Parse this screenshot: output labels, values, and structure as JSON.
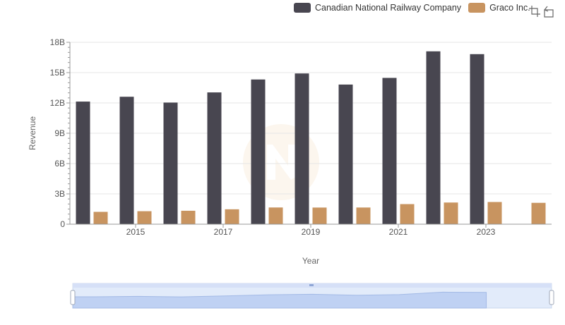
{
  "legend": {
    "items": [
      {
        "label": "Canadian National Railway Company",
        "color": "#484650"
      },
      {
        "label": "Graco Inc.",
        "color": "#c89460"
      }
    ]
  },
  "toolbox": {
    "icons": [
      "data-zoom-icon",
      "zoom-reset-icon"
    ]
  },
  "chart_data": {
    "type": "bar",
    "xlabel": "Year",
    "ylabel": "Revenue",
    "ylim": [
      0,
      18000000000
    ],
    "y_ticks": [
      "0",
      "3B",
      "6B",
      "9B",
      "12B",
      "15B",
      "18B"
    ],
    "x_tick_labels": [
      "2015",
      "2017",
      "2019",
      "2021",
      "2023"
    ],
    "categories": [
      "2014",
      "2015",
      "2016",
      "2017",
      "2018",
      "2019",
      "2020",
      "2021",
      "2022",
      "2023",
      "2024"
    ],
    "grid": true,
    "legend_position": "top-right",
    "series": [
      {
        "name": "Canadian National Railway Company",
        "color": "#484650",
        "values": [
          12134000000,
          12611000000,
          12037000000,
          13041000000,
          14321000000,
          14917000000,
          13819000000,
          14477000000,
          17107000000,
          16828000000,
          null
        ]
      },
      {
        "name": "Graco Inc.",
        "color": "#c89460",
        "values": [
          1221000000,
          1286000000,
          1329000000,
          1475000000,
          1653000000,
          1646000000,
          1650000000,
          1988000000,
          2143000000,
          2196000000,
          2113000000
        ]
      }
    ],
    "data_zoom": {
      "start_percent": 0,
      "end_percent": 100
    }
  }
}
